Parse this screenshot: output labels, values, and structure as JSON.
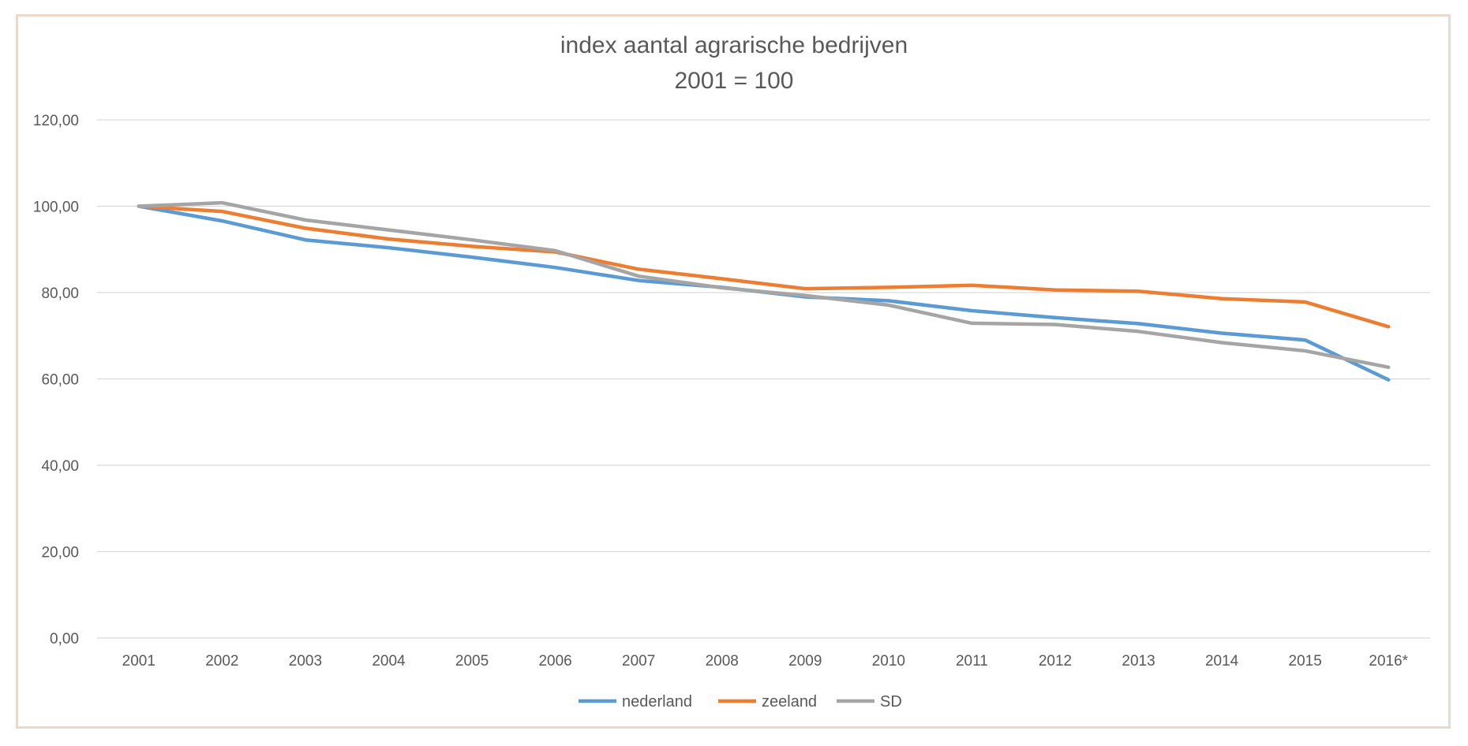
{
  "chart_data": {
    "type": "line",
    "title": "index aantal agrarische bedrijven",
    "subtitle": "2001 = 100",
    "xlabel": "",
    "ylabel": "",
    "categories": [
      "2001",
      "2002",
      "2003",
      "2004",
      "2005",
      "2006",
      "2007",
      "2008",
      "2009",
      "2010",
      "2011",
      "2012",
      "2013",
      "2014",
      "2015",
      "2016*"
    ],
    "y_ticks": [
      "0,00",
      "20,00",
      "40,00",
      "60,00",
      "80,00",
      "100,00",
      "120,00"
    ],
    "ylim": [
      0,
      120
    ],
    "grid": true,
    "legend_position": "bottom",
    "series": [
      {
        "name": "nederland",
        "color": "#5b9bd5",
        "values": [
          100.0,
          96.6,
          92.2,
          90.4,
          88.2,
          85.8,
          82.8,
          81.2,
          79.0,
          78.1,
          75.8,
          74.2,
          72.8,
          70.6,
          69.0,
          59.8
        ]
      },
      {
        "name": "zeeland",
        "color": "#ed7d31",
        "values": [
          100.0,
          98.8,
          94.9,
          92.4,
          90.7,
          89.4,
          85.4,
          83.2,
          80.9,
          81.2,
          81.7,
          80.6,
          80.3,
          78.6,
          77.8,
          72.1
        ]
      },
      {
        "name": "SD",
        "color": "#a5a5a5",
        "values": [
          100.0,
          100.8,
          96.8,
          94.5,
          92.2,
          89.7,
          83.8,
          81.1,
          79.3,
          77.1,
          72.9,
          72.6,
          71.0,
          68.4,
          66.5,
          62.7
        ]
      }
    ]
  }
}
